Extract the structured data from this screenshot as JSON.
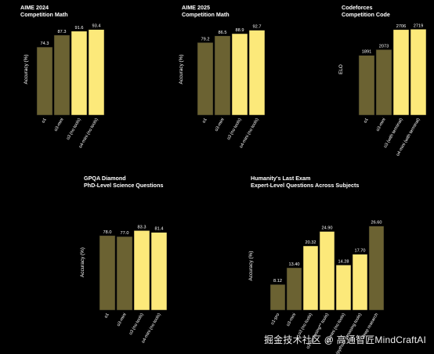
{
  "colors": {
    "background": "#000000",
    "bar_dark": "#6b6232",
    "bar_light": "#fce97a",
    "bar_stroke": "#111111"
  },
  "watermark": "掘金技术社区 @ 高通智匠MindCraftAI",
  "chart_data": [
    {
      "type": "bar",
      "title": "AIME 2024",
      "subtitle": "Competition Math",
      "ylabel": "Accuracy (%)",
      "categories": [
        "o1",
        "o3-mini",
        "o3 (no tools)",
        "o4-mini (no tools)"
      ],
      "values": [
        74.3,
        87.3,
        91.6,
        93.4
      ],
      "labels": [
        "74.3",
        "87.3",
        "91.6",
        "93.4"
      ],
      "bar_styles": [
        "dark",
        "dark",
        "light",
        "light"
      ],
      "ylim": [
        0,
        100
      ],
      "grid": false
    },
    {
      "type": "bar",
      "title": "AIME 2025",
      "subtitle": "Competition Math",
      "ylabel": "Accuracy (%)",
      "categories": [
        "o1",
        "o3-mini",
        "o3 (no tools)",
        "o4-mini (no tools)"
      ],
      "values": [
        79.2,
        86.5,
        88.9,
        92.7
      ],
      "labels": [
        "79.2",
        "86.5",
        "88.9",
        "92.7"
      ],
      "bar_styles": [
        "dark",
        "dark",
        "light",
        "light"
      ],
      "ylim": [
        0,
        100
      ],
      "grid": false
    },
    {
      "type": "bar",
      "title": "Codeforces",
      "subtitle": "Competition Code",
      "ylabel": "ELO",
      "categories": [
        "o1",
        "o3-mini",
        "o3 (with terminal)",
        "o4-mini (with terminal)"
      ],
      "values": [
        1891,
        2073,
        2706,
        2719
      ],
      "labels": [
        "1891",
        "2073",
        "2706",
        "2719"
      ],
      "bar_styles": [
        "dark",
        "dark",
        "light",
        "light"
      ],
      "ylim": [
        0,
        2900
      ],
      "grid": false
    },
    {
      "type": "bar",
      "title": "GPQA Diamond",
      "subtitle": "PhD-Level Science Questions",
      "ylabel": "Accuracy (%)",
      "categories": [
        "o1",
        "o3-mini",
        "o3 (no tools)",
        "o4-mini (no tools)"
      ],
      "values": [
        78.0,
        77.0,
        83.3,
        81.4
      ],
      "labels": [
        "78.0",
        "77.0",
        "83.3",
        "81.4"
      ],
      "bar_styles": [
        "dark",
        "dark",
        "light",
        "light"
      ],
      "ylim": [
        0,
        100
      ],
      "grid": false
    },
    {
      "type": "bar",
      "title": "Humanity's Last Exam",
      "subtitle": "Expert-Level Questions Across Subjects",
      "ylabel": "Accuracy (%)",
      "categories": [
        "o1-pro",
        "o3-mini",
        "o3 (no tools)",
        "o3 (browsing** tools)",
        "o4-mini (no tools)",
        "o4-mini (python* browsing tools)",
        "deep research"
      ],
      "values": [
        8.12,
        13.4,
        20.32,
        24.9,
        14.28,
        17.7,
        26.6
      ],
      "labels": [
        "8.12",
        "13.40",
        "20.32",
        "24.90",
        "14.28",
        "17.70",
        "26.60"
      ],
      "bar_styles": [
        "dark",
        "dark",
        "light",
        "light",
        "light",
        "light",
        "dark"
      ],
      "ylim": [
        0,
        28
      ],
      "grid": false
    }
  ]
}
